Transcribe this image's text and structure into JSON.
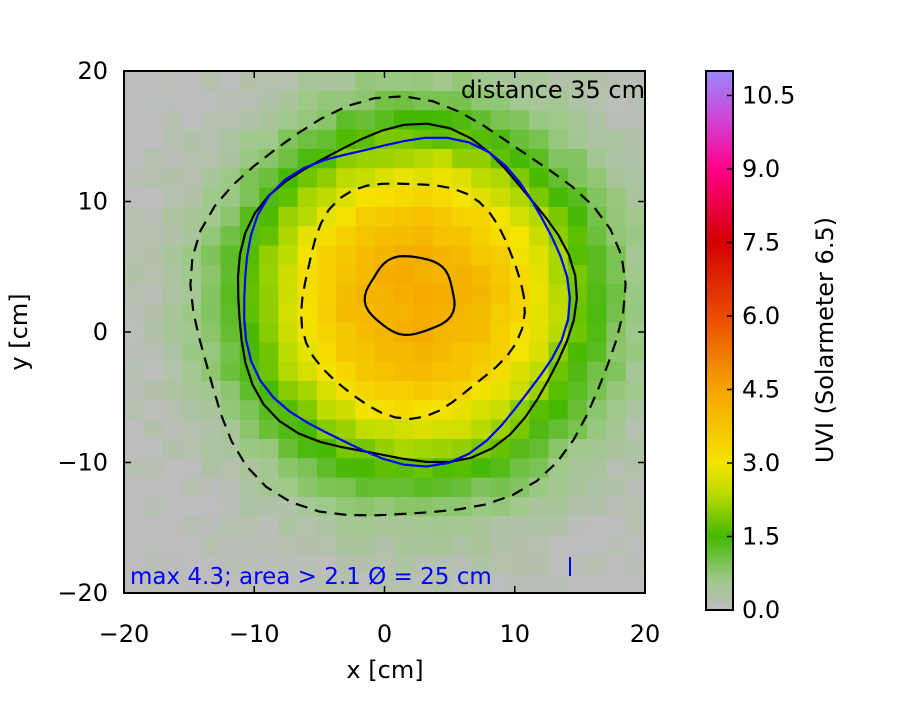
{
  "chart_data": {
    "type": "heatmap",
    "title": "",
    "xlabel": "x [cm]",
    "ylabel": "y [cm]",
    "xlim": [
      -20,
      20
    ],
    "ylim": [
      -20,
      20
    ],
    "xticks": [
      "−20",
      "−10",
      "0",
      "10",
      "20"
    ],
    "yticks": [
      "−20",
      "−10",
      "0",
      "10",
      "20"
    ],
    "grid": false,
    "annotation_distance": "distance  35 cm",
    "annotation_stats": "max 4.3; area > 2.1 Ø = 25 cm",
    "peak": {
      "x": 2.5,
      "y": 2.5,
      "value": 4.3
    },
    "contours": [
      {
        "level": "outer dashed",
        "style": "dashed",
        "color": "#000000",
        "radius_x": 16.5,
        "radius_y": 16.0,
        "center": [
          1.5,
          1.5
        ]
      },
      {
        "level": "solid",
        "style": "solid",
        "color": "#000000",
        "radius_x": 13.0,
        "radius_y": 12.8,
        "center": [
          1.5,
          2.6
        ]
      },
      {
        "level": "2.1",
        "style": "solid",
        "color": "#0000ff",
        "radius_x": 12.5,
        "radius_y": 12.4,
        "center": [
          1.5,
          2.6
        ]
      },
      {
        "level": "inner dashed",
        "style": "dashed",
        "color": "#000000",
        "radius_x": 8.5,
        "radius_y": 9.0,
        "center": [
          2.0,
          2.7
        ]
      },
      {
        "level": "core",
        "style": "solid",
        "color": "#000000",
        "radius_x": 3.4,
        "radius_y": 3.0,
        "center": [
          2.0,
          2.8
        ]
      }
    ],
    "colorbar": {
      "label": "UVI (Solarmeter 6.5)",
      "min": 0.0,
      "max": 11.0,
      "ticks": [
        "0.0",
        "1.5",
        "3.0",
        "4.5",
        "6.0",
        "7.5",
        "9.0",
        "10.5"
      ],
      "tick_values": [
        0.0,
        1.5,
        3.0,
        4.5,
        6.0,
        7.5,
        9.0,
        10.5
      ],
      "colors": [
        {
          "v": 0.0,
          "c": "#bdbdbd"
        },
        {
          "v": 0.6,
          "c": "#9fc98a"
        },
        {
          "v": 1.5,
          "c": "#44b800"
        },
        {
          "v": 2.4,
          "c": "#bfdc00"
        },
        {
          "v": 3.0,
          "c": "#f5e300"
        },
        {
          "v": 4.5,
          "c": "#f5a500"
        },
        {
          "v": 6.0,
          "c": "#ea4b00"
        },
        {
          "v": 7.5,
          "c": "#d40000"
        },
        {
          "v": 9.0,
          "c": "#ff0088"
        },
        {
          "v": 10.0,
          "c": "#cf43d6"
        },
        {
          "v": 11.0,
          "c": "#9b88ff"
        }
      ]
    }
  }
}
